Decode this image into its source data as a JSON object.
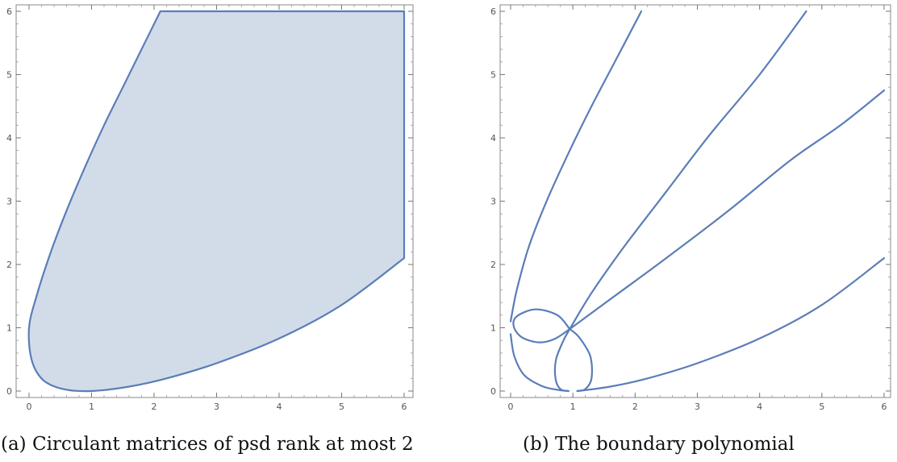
{
  "chart_data": [
    {
      "type": "area",
      "caption": "(a) Circulant matrices of psd rank at most 2",
      "xlim": [
        0,
        6
      ],
      "ylim": [
        0,
        6
      ],
      "xticks": [
        0,
        1,
        2,
        3,
        4,
        5,
        6
      ],
      "yticks": [
        0,
        1,
        2,
        3,
        4,
        5,
        6
      ],
      "grid": false,
      "series": [
        {
          "color": "#5b7db8",
          "fill": "#d2dce9",
          "points": [
            [
              2.1,
              6
            ],
            [
              1.8,
              5.4
            ],
            [
              1.5,
              4.8
            ],
            [
              1.2,
              4.2
            ],
            [
              0.9,
              3.55
            ],
            [
              0.6,
              2.85
            ],
            [
              0.35,
              2.2
            ],
            [
              0.12,
              1.5
            ],
            [
              0.0,
              1.0
            ],
            [
              0.04,
              0.5
            ],
            [
              0.22,
              0.18
            ],
            [
              0.55,
              0.03
            ],
            [
              1.0,
              0.0
            ],
            [
              1.6,
              0.07
            ],
            [
              2.2,
              0.2
            ],
            [
              3.0,
              0.44
            ],
            [
              4.0,
              0.83
            ],
            [
              5.0,
              1.36
            ],
            [
              6.0,
              2.1
            ],
            [
              6.0,
              6.0
            ]
          ]
        }
      ]
    },
    {
      "type": "line",
      "caption": "(b) The boundary polynomial",
      "xlim": [
        0,
        6
      ],
      "ylim": [
        0,
        6
      ],
      "xticks": [
        0,
        1,
        2,
        3,
        4,
        5,
        6
      ],
      "yticks": [
        0,
        1,
        2,
        3,
        4,
        5,
        6
      ],
      "grid": false,
      "series": [
        {
          "color": "#5b7db8",
          "points": [
            [
              0.0,
              1.1
            ],
            [
              0.1,
              1.6
            ],
            [
              0.3,
              2.3
            ],
            [
              0.6,
              3.05
            ],
            [
              0.95,
              3.8
            ],
            [
              1.3,
              4.5
            ],
            [
              1.7,
              5.25
            ],
            [
              2.1,
              6.0
            ]
          ]
        },
        {
          "color": "#5b7db8",
          "points": [
            [
              0.95,
              0.98
            ],
            [
              1.3,
              1.55
            ],
            [
              1.8,
              2.25
            ],
            [
              2.5,
              3.15
            ],
            [
              3.2,
              4.05
            ],
            [
              4.0,
              5.0
            ],
            [
              4.75,
              6.0
            ]
          ]
        },
        {
          "color": "#5b7db8",
          "points": [
            [
              0.95,
              0.98
            ],
            [
              1.6,
              1.45
            ],
            [
              2.5,
              2.1
            ],
            [
              3.5,
              2.85
            ],
            [
              4.5,
              3.65
            ],
            [
              5.3,
              4.2
            ],
            [
              6.0,
              4.75
            ]
          ]
        },
        {
          "color": "#5b7db8",
          "points": [
            [
              1.07,
              0.0
            ],
            [
              1.6,
              0.07
            ],
            [
              2.2,
              0.2
            ],
            [
              3.0,
              0.44
            ],
            [
              4.0,
              0.83
            ],
            [
              5.0,
              1.36
            ],
            [
              6.0,
              2.1
            ]
          ]
        },
        {
          "color": "#5b7db8",
          "points": [
            [
              0.95,
              0.98
            ],
            [
              0.75,
              1.2
            ],
            [
              0.4,
              1.29
            ],
            [
              0.1,
              1.18
            ],
            [
              0.05,
              1.02
            ],
            [
              0.18,
              0.85
            ],
            [
              0.45,
              0.77
            ],
            [
              0.7,
              0.82
            ],
            [
              0.95,
              0.98
            ]
          ]
        },
        {
          "color": "#5b7db8",
          "points": [
            [
              0.0,
              0.9
            ],
            [
              0.06,
              0.55
            ],
            [
              0.22,
              0.25
            ],
            [
              0.5,
              0.08
            ],
            [
              0.75,
              0.02
            ],
            [
              0.93,
              0.0
            ]
          ]
        },
        {
          "color": "#5b7db8",
          "points": [
            [
              0.95,
              0.98
            ],
            [
              0.85,
              0.8
            ],
            [
              0.73,
              0.5
            ],
            [
              0.72,
              0.2
            ],
            [
              0.8,
              0.03
            ],
            [
              0.93,
              0.0
            ]
          ]
        },
        {
          "color": "#5b7db8",
          "points": [
            [
              0.95,
              0.98
            ],
            [
              1.1,
              0.85
            ],
            [
              1.28,
              0.55
            ],
            [
              1.3,
              0.2
            ],
            [
              1.2,
              0.03
            ],
            [
              1.07,
              0.0
            ]
          ]
        }
      ]
    }
  ]
}
